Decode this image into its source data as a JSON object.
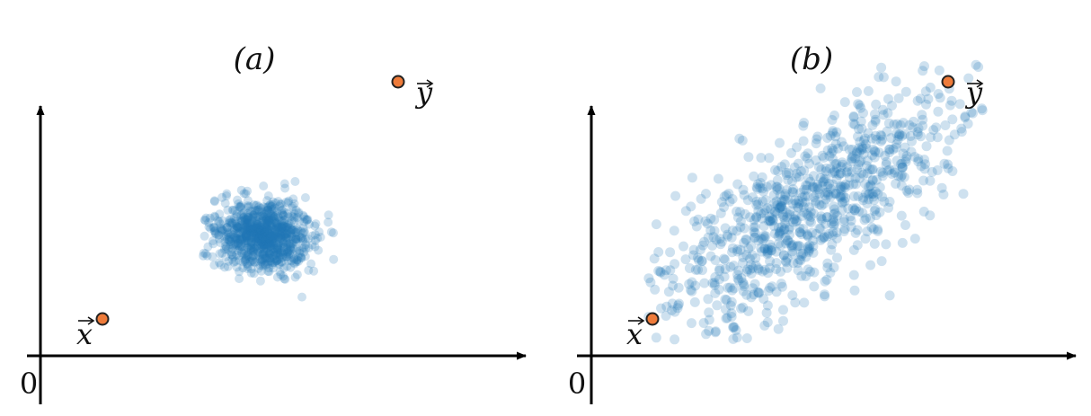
{
  "panels": [
    {
      "id": "a",
      "title": "(a)",
      "origin_label": "0",
      "x_point_label": "x",
      "y_point_label": "y",
      "cloud": {
        "shape": "isotropic",
        "point_count": 900
      }
    },
    {
      "id": "b",
      "title": "(b)",
      "origin_label": "0",
      "x_point_label": "x",
      "y_point_label": "y",
      "cloud": {
        "shape": "elongated along x-to-y direction",
        "point_count": 900
      }
    }
  ],
  "colors": {
    "scatter_points": "#1f77b4",
    "marked_points_fill": "#ee7b3a",
    "marked_points_stroke": "#222222",
    "axes": "#000000"
  }
}
